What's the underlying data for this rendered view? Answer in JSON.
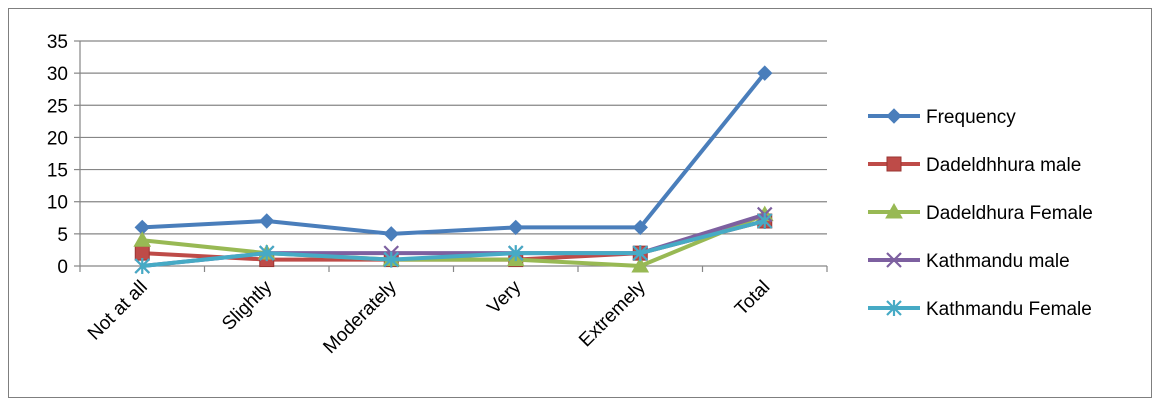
{
  "chart_data": {
    "type": "line",
    "categories": [
      "Not at all",
      "Slightly",
      "Moderately",
      "Very",
      "Extremely",
      "Total"
    ],
    "y_ticks": [
      "0",
      "5",
      "10",
      "15",
      "20",
      "25",
      "30",
      "35"
    ],
    "ylim": [
      0,
      35
    ],
    "grid": true,
    "legend_position": "right",
    "series": [
      {
        "name": "Frequency",
        "values": [
          6,
          7,
          5,
          6,
          6,
          30
        ],
        "color": "#4a7ebb",
        "marker": "diamond"
      },
      {
        "name": "Dadeldhhura male",
        "values": [
          2,
          1,
          1,
          1,
          2,
          7
        ],
        "color": "#be4b48",
        "marker": "square"
      },
      {
        "name": "Dadeldhura Female",
        "values": [
          4,
          2,
          1,
          1,
          0,
          8
        ],
        "color": "#98b954",
        "marker": "triangle"
      },
      {
        "name": "Kathmandu male",
        "values": [
          0,
          2,
          2,
          2,
          2,
          8
        ],
        "color": "#7d60a0",
        "marker": "x"
      },
      {
        "name": "Kathmandu Female",
        "values": [
          0,
          2,
          1,
          2,
          2,
          7
        ],
        "color": "#46aac5",
        "marker": "star"
      }
    ]
  }
}
